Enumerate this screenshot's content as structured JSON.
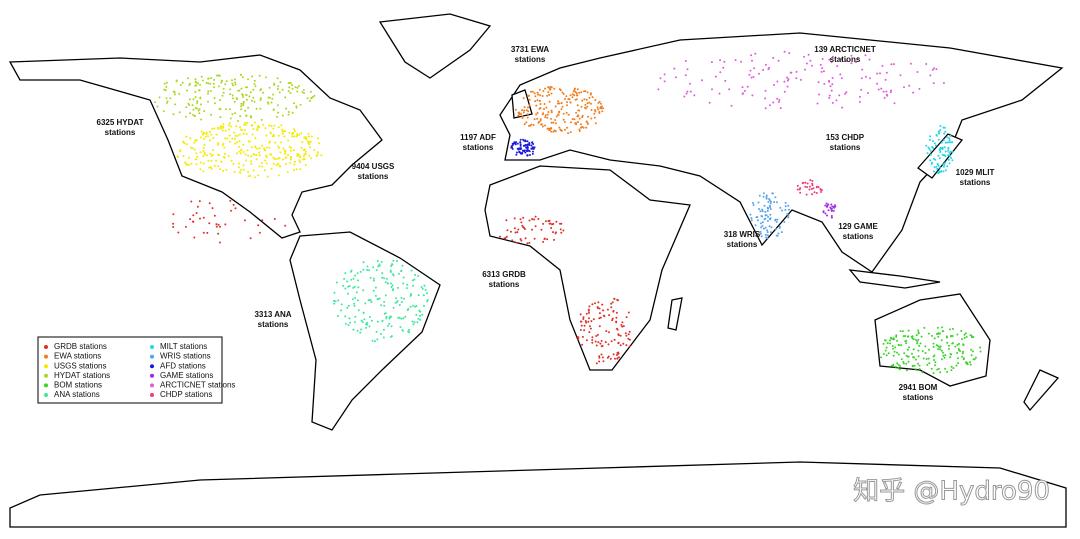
{
  "annotations": [
    {
      "count": "6325 HYDAT",
      "unit": "stations"
    },
    {
      "count": "9404 USGS",
      "unit": "stations"
    },
    {
      "count": "3313 ANA",
      "unit": "stations"
    },
    {
      "count": "3731 EWA",
      "unit": "stations"
    },
    {
      "count": "1197 ADF",
      "unit": "stations"
    },
    {
      "count": "6313 GRDB",
      "unit": "stations"
    },
    {
      "count": "318 WRIS",
      "unit": "stations"
    },
    {
      "count": "153 CHDP",
      "unit": "stations"
    },
    {
      "count": "139 ARCTICNET",
      "unit": "stations"
    },
    {
      "count": "1029 MLIT",
      "unit": "stations"
    },
    {
      "count": "129 GAME",
      "unit": "stations"
    },
    {
      "count": "2941 BOM",
      "unit": "stations"
    }
  ],
  "legend": [
    {
      "label": "GRDB stations",
      "color": "#e0302a"
    },
    {
      "label": "EWA stations",
      "color": "#f07d1e"
    },
    {
      "label": "USGS stations",
      "color": "#f2ea00"
    },
    {
      "label": "HYDAT stations",
      "color": "#a8d820"
    },
    {
      "label": "BOM stations",
      "color": "#3bd42a"
    },
    {
      "label": "ANA stations",
      "color": "#3de89a"
    },
    {
      "label": "MILT stations",
      "color": "#22d6e6"
    },
    {
      "label": "WRIS stations",
      "color": "#5aa4ea"
    },
    {
      "label": "AFD stations",
      "color": "#1a1ad8"
    },
    {
      "label": "GAME stations",
      "color": "#a02ae0"
    },
    {
      "label": "ARCTICNET stations",
      "color": "#e25ad8"
    },
    {
      "label": "CHDP stations",
      "color": "#f03a78"
    }
  ],
  "watermark": "知乎 @Hydro90"
}
